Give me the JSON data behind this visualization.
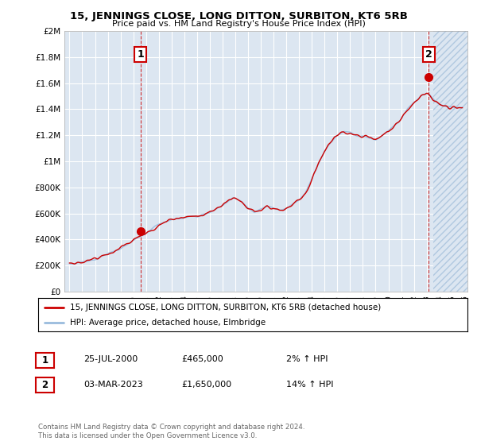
{
  "title": "15, JENNINGS CLOSE, LONG DITTON, SURBITON, KT6 5RB",
  "subtitle": "Price paid vs. HM Land Registry's House Price Index (HPI)",
  "background_color": "#ffffff",
  "plot_bg_color": "#dce6f1",
  "grid_color": "#ffffff",
  "hatch_color": "#c8d8e8",
  "ylim": [
    0,
    2000000
  ],
  "yticks": [
    0,
    200000,
    400000,
    600000,
    800000,
    1000000,
    1200000,
    1400000,
    1600000,
    1800000,
    2000000
  ],
  "ytick_labels": [
    "£0",
    "£200K",
    "£400K",
    "£600K",
    "£800K",
    "£1M",
    "£1.2M",
    "£1.4M",
    "£1.6M",
    "£1.8M",
    "£2M"
  ],
  "legend_line1": "15, JENNINGS CLOSE, LONG DITTON, SURBITON, KT6 5RB (detached house)",
  "legend_line2": "HPI: Average price, detached house, Elmbridge",
  "sale1_date": "25-JUL-2000",
  "sale1_price": "£465,000",
  "sale1_hpi": "2% ↑ HPI",
  "sale2_date": "03-MAR-2023",
  "sale2_price": "£1,650,000",
  "sale2_hpi": "14% ↑ HPI",
  "footer": "Contains HM Land Registry data © Crown copyright and database right 2024.\nThis data is licensed under the Open Government Licence v3.0.",
  "sale_color": "#cc0000",
  "hpi_color": "#99bbdd",
  "sale1_x": 2000.56,
  "sale1_y": 465000,
  "sale2_x": 2023.17,
  "sale2_y": 1650000,
  "hatch_start": 2023.5,
  "xmin": 1994.6,
  "xmax": 2026.2
}
